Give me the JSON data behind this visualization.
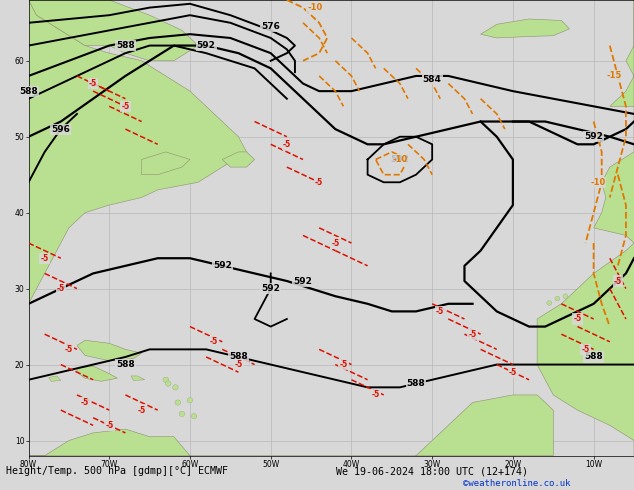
{
  "title_left": "Height/Temp. 500 hPa [gdmp][°C] ECMWF",
  "title_right": "We 19-06-2024 18:00 UTC (12+174)",
  "watermark": "©weatheronline.co.uk",
  "bg_color": "#d8d8d8",
  "land_color": "#b8e090",
  "land_edge": "#909070",
  "ocean_color": "#d8d8d8",
  "grid_color": "#b8b8b8",
  "black": "#000000",
  "red": "#dd1100",
  "orange": "#e07800",
  "figsize": [
    6.34,
    4.9
  ],
  "dpi": 100,
  "lon_min": -80,
  "lon_max": -5,
  "lat_min": 8,
  "lat_max": 68
}
